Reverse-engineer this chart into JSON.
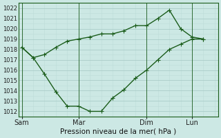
{
  "xlabel": "Pression niveau de la mer( hPa )",
  "bg_color": "#cce8e4",
  "line_color": "#1a5c1a",
  "grid_color_major": "#aaccc8",
  "grid_color_minor": "#bcdcd8",
  "ylim": [
    1011.5,
    1022.5
  ],
  "yticks": [
    1012,
    1013,
    1014,
    1015,
    1016,
    1017,
    1018,
    1019,
    1020,
    1021,
    1022
  ],
  "xtick_labels": [
    "Sam",
    "Mar",
    "Dim",
    "Lun"
  ],
  "xtick_positions": [
    0,
    5,
    11,
    15
  ],
  "xlim": [
    -0.3,
    17.3
  ],
  "line1_x": [
    0,
    1,
    2,
    3,
    4,
    5,
    6,
    7,
    8,
    9,
    10,
    11,
    12,
    13,
    14,
    15,
    16
  ],
  "line1_y": [
    1018.2,
    1017.2,
    1015.6,
    1013.9,
    1012.5,
    1012.5,
    1012.0,
    1012.0,
    1013.3,
    1014.1,
    1015.2,
    1016.0,
    1017.0,
    1018.0,
    1018.5,
    1019.0,
    1019.0
  ],
  "line2_x": [
    0,
    1,
    2,
    3,
    4,
    5,
    6,
    7,
    8,
    9,
    10,
    11,
    12,
    13,
    14,
    15,
    16
  ],
  "line2_y": [
    1018.2,
    1017.2,
    1017.5,
    1018.2,
    1018.8,
    1019.0,
    1019.2,
    1019.5,
    1019.5,
    1019.8,
    1020.3,
    1020.3,
    1021.0,
    1021.8,
    1020.0,
    1019.2,
    1019.0
  ],
  "vline_positions": [
    0,
    5,
    11,
    15
  ],
  "marker_size": 2.5,
  "line_width": 1.0,
  "xlabel_fontsize": 7.5,
  "ytick_fontsize": 6.0,
  "xtick_fontsize": 7.0
}
